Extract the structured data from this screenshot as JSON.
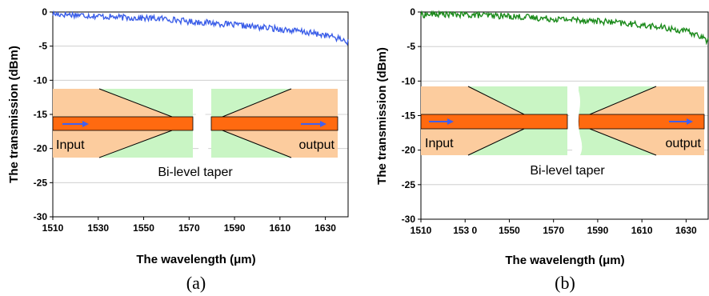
{
  "chart_data": [
    {
      "type": "line",
      "panel_label": "(a)",
      "xlabel": "The wavelength (μm)",
      "ylabel": "The transmission (dBm)",
      "xlim": [
        1510,
        1640
      ],
      "ylim": [
        -30,
        0
      ],
      "x_ticks": [
        "1510",
        "1530",
        "1550",
        "1570",
        "1590",
        "1610",
        "1630"
      ],
      "y_ticks": [
        "0",
        "-5",
        "-10",
        "-15",
        "-20",
        "-25",
        "-30"
      ],
      "grid": true,
      "series": [
        {
          "color": "#3b5ee8",
          "x": [
            1510,
            1520,
            1530,
            1540,
            1550,
            1560,
            1570,
            1580,
            1590,
            1600,
            1610,
            1620,
            1630,
            1635,
            1640
          ],
          "y": [
            -0.3,
            -0.4,
            -0.6,
            -0.8,
            -0.9,
            -1.0,
            -1.4,
            -1.6,
            -1.9,
            -2.2,
            -2.5,
            -2.9,
            -3.4,
            -3.8,
            -4.4
          ]
        }
      ],
      "inset": {
        "input_label": "Input",
        "output_label": "output",
        "caption": "Bi-level  taper"
      }
    },
    {
      "type": "line",
      "panel_label": "(b)",
      "xlabel": "The wavelength (μm)",
      "ylabel": "The transmission (dBm)",
      "xlim": [
        1510,
        1640
      ],
      "ylim": [
        -30,
        0
      ],
      "x_ticks": [
        "1510",
        "153 0",
        "1550",
        "1570",
        "1590",
        "1610",
        "1630"
      ],
      "y_ticks": [
        "0",
        "-5",
        "-10",
        "-15",
        "-20",
        "-25",
        "-30"
      ],
      "grid": true,
      "series": [
        {
          "color": "#1a8a1a",
          "x": [
            1510,
            1520,
            1530,
            1540,
            1550,
            1560,
            1570,
            1580,
            1590,
            1600,
            1610,
            1620,
            1630,
            1635,
            1640
          ],
          "y": [
            -0.4,
            -0.3,
            -0.4,
            -0.5,
            -0.6,
            -0.8,
            -1.0,
            -1.1,
            -1.3,
            -1.6,
            -1.9,
            -2.3,
            -2.8,
            -3.3,
            -4.2
          ]
        }
      ],
      "inset": {
        "input_label": "Input",
        "output_label": "output",
        "caption": "Bi-level  taper"
      }
    }
  ]
}
